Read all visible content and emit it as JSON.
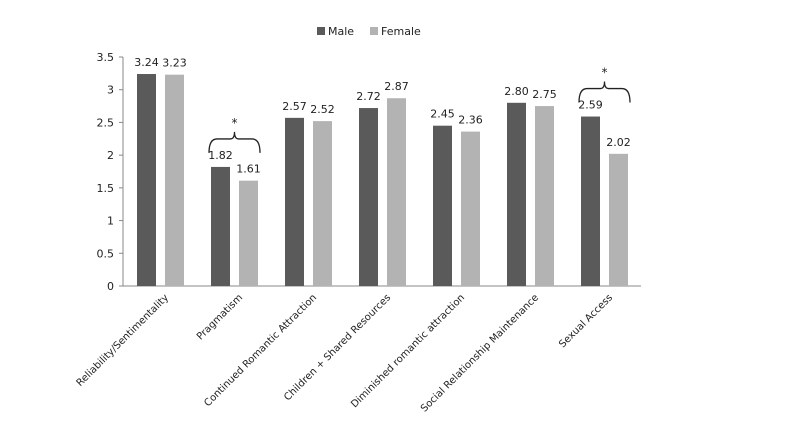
{
  "chart_data": {
    "type": "bar",
    "title": "",
    "xlabel": "",
    "ylabel": "",
    "ylim": [
      0,
      3.5
    ],
    "yticks": [
      "0",
      "0.5",
      "1",
      "1.5",
      "2",
      "2.5",
      "3",
      "3.5"
    ],
    "grid": false,
    "legend_position": "top-center",
    "categories": [
      "Reliability/Sentimentality",
      "Pragmatism",
      "Continued Romantic Attraction",
      "Children + Shared Resources",
      "Diminished romantic attraction",
      "Social Relationship Maintenance",
      "Sexual Access"
    ],
    "series": [
      {
        "name": "Male",
        "color": "#5a5a5a",
        "values": [
          3.24,
          1.82,
          2.57,
          2.72,
          2.45,
          2.8,
          2.59
        ],
        "labels": [
          "3.24",
          "1.82",
          "2.57",
          "2.72",
          "2.45",
          "2.80",
          "2.59"
        ]
      },
      {
        "name": "Female",
        "color": "#b3b3b3",
        "values": [
          3.23,
          1.61,
          2.52,
          2.87,
          2.36,
          2.75,
          2.02
        ],
        "labels": [
          "3.23",
          "1.61",
          "2.52",
          "2.87",
          "2.36",
          "2.75",
          "2.02"
        ]
      }
    ],
    "annotations": [
      {
        "category": "Pragmatism",
        "text": "*",
        "type": "significance-bracket"
      },
      {
        "category": "Sexual Access",
        "text": "*",
        "type": "significance-bracket"
      }
    ]
  }
}
